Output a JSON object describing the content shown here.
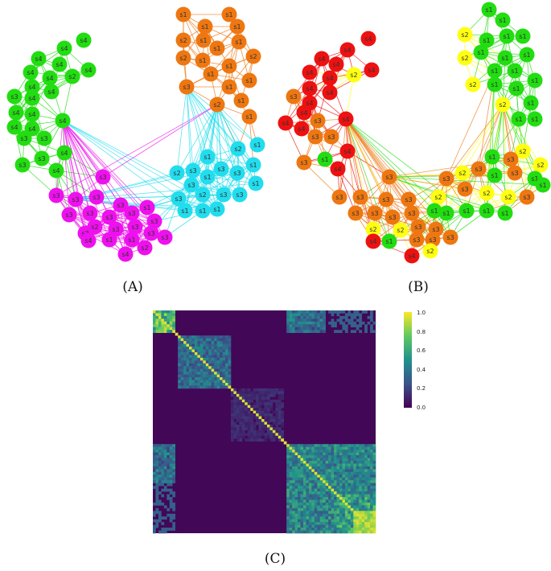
{
  "panels": [
    {
      "id": "A",
      "label": "(A)"
    },
    {
      "id": "B",
      "label": "(B)"
    },
    {
      "id": "C",
      "label": "(C)"
    }
  ],
  "colors": {
    "green": "#22dd11",
    "orange": "#ee7711",
    "cyan": "#22ddee",
    "magenta": "#ee11ee",
    "red": "#ee1111",
    "yellow": "#ffff11"
  },
  "colorbar": {
    "ticks": [
      "1.0",
      "0.8",
      "0.6",
      "0.4",
      "0.2",
      "0.0"
    ],
    "range": [
      0.0,
      1.0
    ],
    "colormap": "viridis"
  }
}
